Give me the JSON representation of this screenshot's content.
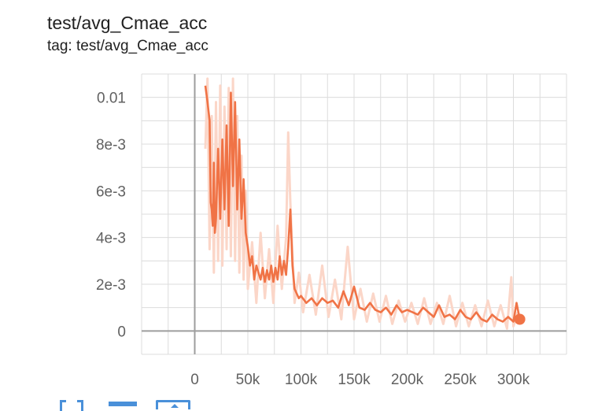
{
  "title": "test/avg_Cmae_acc",
  "tag_line": "tag: test/avg_Cmae_acc",
  "toolbar": {
    "fit_icon": "fit-domain-icon",
    "log_icon": "log-scale-icon",
    "download_icon": "download-icon"
  },
  "chart_data": {
    "type": "line",
    "title": "test/avg_Cmae_acc",
    "xlabel": "",
    "ylabel": "",
    "xlim": [
      -50000,
      350000
    ],
    "ylim": [
      -0.001,
      0.011
    ],
    "x_ticks": [
      0,
      50000,
      100000,
      150000,
      200000,
      250000,
      300000
    ],
    "x_tick_labels": [
      "0",
      "50k",
      "100k",
      "150k",
      "200k",
      "250k",
      "300k"
    ],
    "y_ticks": [
      0,
      0.002,
      0.004,
      0.006,
      0.008,
      0.01
    ],
    "y_tick_labels": [
      "0",
      "2e-3",
      "4e-3",
      "6e-3",
      "8e-3",
      "0.01"
    ],
    "grid": true,
    "colors": {
      "smoothed": "#f07346",
      "raw": "#fbd6c8",
      "axis": "#9e9e9e",
      "grid": "#dcdcdc"
    },
    "series": [
      {
        "smoothing": "smoothed",
        "x": [
          10000,
          12000,
          14000,
          15000,
          16000,
          17000,
          18000,
          19000,
          20000,
          22000,
          24000,
          26000,
          28000,
          30000,
          32000,
          34000,
          36000,
          38000,
          40000,
          42000,
          44000,
          46000,
          48000,
          50000,
          52000,
          54000,
          56000,
          58000,
          60000,
          62000,
          64000,
          66000,
          68000,
          70000,
          72000,
          74000,
          76000,
          78000,
          80000,
          82000,
          84000,
          86000,
          88000,
          90000,
          92000,
          94000,
          96000,
          98000,
          100000,
          105000,
          110000,
          115000,
          120000,
          125000,
          130000,
          135000,
          140000,
          145000,
          150000,
          155000,
          160000,
          165000,
          170000,
          175000,
          180000,
          185000,
          190000,
          195000,
          200000,
          205000,
          210000,
          215000,
          220000,
          225000,
          230000,
          235000,
          240000,
          245000,
          250000,
          255000,
          260000,
          265000,
          270000,
          275000,
          280000,
          285000,
          290000,
          295000,
          300000,
          303000,
          306000
        ],
        "y": [
          0.0105,
          0.0098,
          0.009,
          0.0055,
          0.0052,
          0.0045,
          0.0072,
          0.0042,
          0.0048,
          0.0078,
          0.0048,
          0.0082,
          0.0052,
          0.0088,
          0.0045,
          0.0102,
          0.0062,
          0.0098,
          0.0052,
          0.0082,
          0.0048,
          0.0065,
          0.0042,
          0.0036,
          0.0028,
          0.0032,
          0.0022,
          0.0028,
          0.0025,
          0.0022,
          0.0027,
          0.0021,
          0.0026,
          0.0022,
          0.0028,
          0.0021,
          0.0027,
          0.0022,
          0.0032,
          0.0024,
          0.003,
          0.0024,
          0.0036,
          0.0052,
          0.0028,
          0.0018,
          0.0016,
          0.0014,
          0.0015,
          0.0012,
          0.0014,
          0.0011,
          0.0014,
          0.0012,
          0.0013,
          0.001,
          0.0017,
          0.0011,
          0.0019,
          0.001,
          0.0009,
          0.0012,
          0.0009,
          0.0008,
          0.001,
          0.0007,
          0.0011,
          0.0008,
          0.0009,
          0.0008,
          0.0007,
          0.001,
          0.0008,
          0.0006,
          0.0011,
          0.0006,
          0.0007,
          0.0005,
          0.0009,
          0.0006,
          0.0005,
          0.0008,
          0.0005,
          0.0004,
          0.0007,
          0.0005,
          0.0004,
          0.0006,
          0.0004,
          0.0012,
          0.0005
        ]
      },
      {
        "smoothing": "raw",
        "x": [
          10000,
          12000,
          14000,
          16000,
          18000,
          20000,
          22000,
          24000,
          26000,
          28000,
          30000,
          32000,
          34000,
          36000,
          38000,
          40000,
          42000,
          44000,
          46000,
          48000,
          50000,
          54000,
          58000,
          62000,
          66000,
          70000,
          74000,
          78000,
          82000,
          86000,
          88000,
          90000,
          94000,
          98000,
          102000,
          108000,
          114000,
          120000,
          126000,
          132000,
          138000,
          144000,
          150000,
          156000,
          162000,
          168000,
          174000,
          180000,
          186000,
          192000,
          198000,
          204000,
          210000,
          216000,
          222000,
          228000,
          234000,
          240000,
          246000,
          252000,
          258000,
          264000,
          270000,
          276000,
          282000,
          288000,
          294000,
          298000,
          300000,
          304000
        ],
        "y": [
          0.0078,
          0.0108,
          0.0035,
          0.0092,
          0.0025,
          0.0098,
          0.003,
          0.0105,
          0.0028,
          0.0096,
          0.0035,
          0.0104,
          0.0032,
          0.0108,
          0.003,
          0.0092,
          0.0025,
          0.0075,
          0.0022,
          0.006,
          0.0018,
          0.0038,
          0.0012,
          0.0042,
          0.0014,
          0.0035,
          0.0012,
          0.0045,
          0.0018,
          0.004,
          0.0085,
          0.0055,
          0.0012,
          0.0025,
          0.0008,
          0.0024,
          0.0007,
          0.0028,
          0.0006,
          0.0022,
          0.0005,
          0.0036,
          0.0005,
          0.0018,
          0.0004,
          0.0016,
          0.0004,
          0.0015,
          0.0003,
          0.0013,
          0.0004,
          0.0012,
          0.0003,
          0.0014,
          0.0003,
          0.0012,
          0.0003,
          0.0015,
          0.0002,
          0.0012,
          0.0002,
          0.0011,
          0.0002,
          0.0013,
          0.0002,
          0.0011,
          0.0001,
          0.0023,
          0.0002,
          0.0008
        ]
      }
    ],
    "last_point": {
      "x": 306000,
      "y": 0.0005
    }
  }
}
